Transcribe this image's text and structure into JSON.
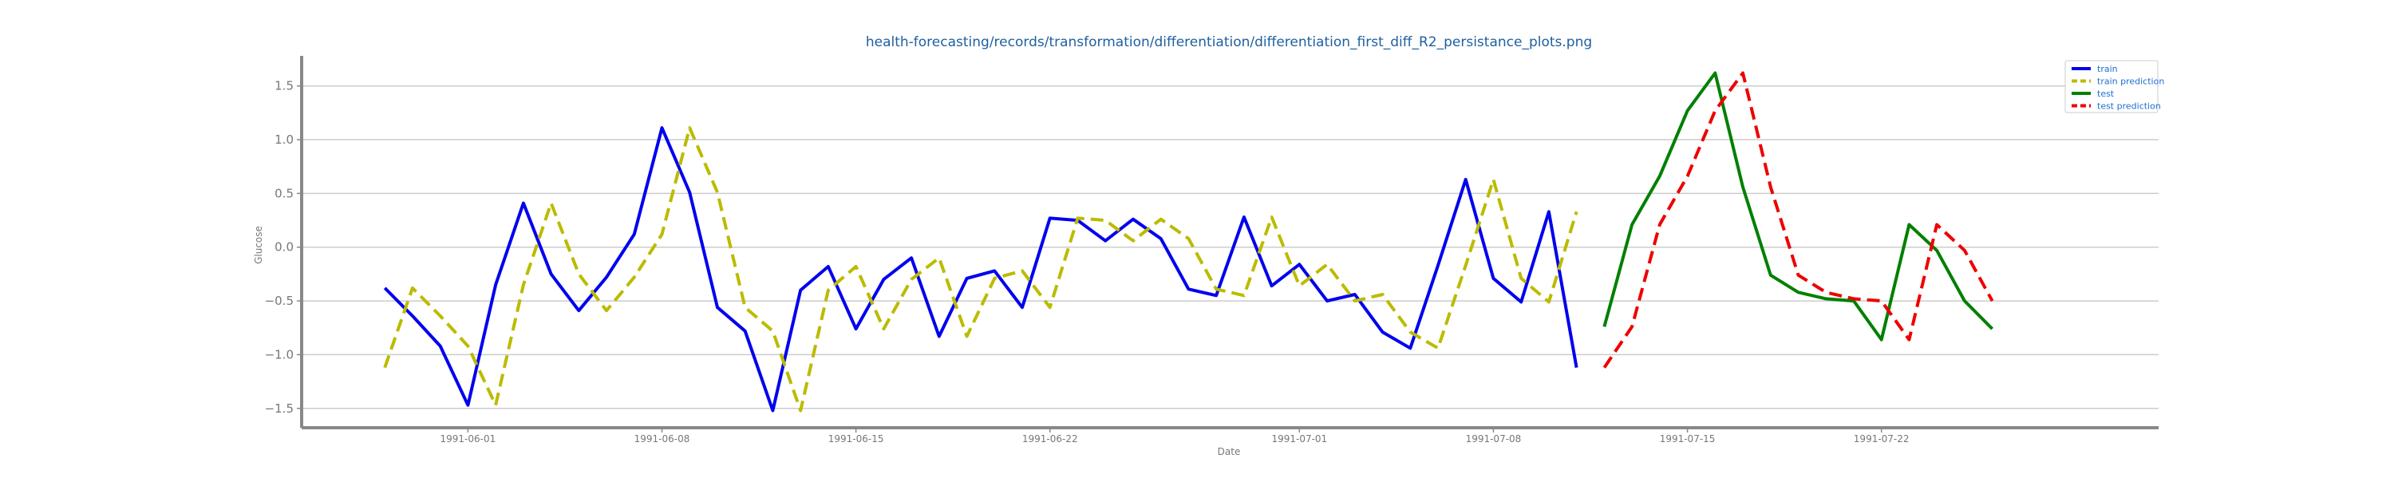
{
  "chart_data": {
    "type": "line",
    "title": "health-forecasting/records/transformation/differentiation/differentiation_first_diff_R2_persistance_plots.png",
    "xlabel": "Date",
    "ylabel": "Glucose",
    "xlim": [
      "1991-05-26",
      "1991-08-01"
    ],
    "ylim": [
      -1.68,
      1.78
    ],
    "x_ticks": [
      "1991-06-01",
      "1991-06-08",
      "1991-06-15",
      "1991-06-22",
      "1991-07-01",
      "1991-07-08",
      "1991-07-15",
      "1991-07-22"
    ],
    "y_ticks": [
      -1.5,
      -1.0,
      -0.5,
      0.0,
      0.5,
      1.0,
      1.5
    ],
    "y_tick_labels": [
      "−1.5",
      "−1.0",
      "−0.5",
      "0.0",
      "0.5",
      "1.0",
      "1.5"
    ],
    "grid": "horizontal",
    "legend_position": "top-right",
    "colors": {
      "train": "#0000ee",
      "train_prediction": "#bbbb00",
      "test": "#008000",
      "test_prediction": "#ee0000",
      "text": "#777777",
      "title": "#1f5f9f",
      "legend_text": "#1f6fd0",
      "grid": "#cccccc",
      "axis": "#888888"
    },
    "series": [
      {
        "name": "train",
        "style": "solid",
        "color": "#0000ee",
        "x": [
          "1991-05-29",
          "1991-05-30",
          "1991-05-31",
          "1991-06-01",
          "1991-06-02",
          "1991-06-03",
          "1991-06-04",
          "1991-06-05",
          "1991-06-06",
          "1991-06-07",
          "1991-06-08",
          "1991-06-09",
          "1991-06-10",
          "1991-06-11",
          "1991-06-12",
          "1991-06-13",
          "1991-06-14",
          "1991-06-15",
          "1991-06-16",
          "1991-06-17",
          "1991-06-18",
          "1991-06-19",
          "1991-06-20",
          "1991-06-21",
          "1991-06-22",
          "1991-06-23",
          "1991-06-24",
          "1991-06-25",
          "1991-06-26",
          "1991-06-27",
          "1991-06-28",
          "1991-06-29",
          "1991-06-30",
          "1991-07-01",
          "1991-07-02",
          "1991-07-03",
          "1991-07-04",
          "1991-07-05",
          "1991-07-06",
          "1991-07-07",
          "1991-07-08",
          "1991-07-09",
          "1991-07-10",
          "1991-07-11"
        ],
        "values": [
          -0.38,
          -0.64,
          -0.92,
          -1.47,
          -0.35,
          0.41,
          -0.25,
          -0.59,
          -0.28,
          0.12,
          1.11,
          0.51,
          -0.56,
          -0.78,
          -1.52,
          -0.4,
          -0.18,
          -0.76,
          -0.3,
          -0.1,
          -0.83,
          -0.29,
          -0.22,
          -0.56,
          0.27,
          0.25,
          0.06,
          0.26,
          0.08,
          -0.39,
          -0.45,
          0.28,
          -0.36,
          -0.16,
          -0.5,
          -0.44,
          -0.79,
          -0.94,
          -0.17,
          0.63,
          -0.29,
          -0.51,
          0.33,
          -1.12
        ]
      },
      {
        "name": "train prediction",
        "style": "dashed",
        "color": "#bbbb00",
        "x": [
          "1991-05-29",
          "1991-05-30",
          "1991-05-31",
          "1991-06-01",
          "1991-06-02",
          "1991-06-03",
          "1991-06-04",
          "1991-06-05",
          "1991-06-06",
          "1991-06-07",
          "1991-06-08",
          "1991-06-09",
          "1991-06-10",
          "1991-06-11",
          "1991-06-12",
          "1991-06-13",
          "1991-06-14",
          "1991-06-15",
          "1991-06-16",
          "1991-06-17",
          "1991-06-18",
          "1991-06-19",
          "1991-06-20",
          "1991-06-21",
          "1991-06-22",
          "1991-06-23",
          "1991-06-24",
          "1991-06-25",
          "1991-06-26",
          "1991-06-27",
          "1991-06-28",
          "1991-06-29",
          "1991-06-30",
          "1991-07-01",
          "1991-07-02",
          "1991-07-03",
          "1991-07-04",
          "1991-07-05",
          "1991-07-06",
          "1991-07-07",
          "1991-07-08",
          "1991-07-09",
          "1991-07-10",
          "1991-07-11"
        ],
        "values": [
          -1.12,
          -0.38,
          -0.64,
          -0.92,
          -1.47,
          -0.35,
          0.41,
          -0.25,
          -0.59,
          -0.28,
          0.12,
          1.11,
          0.51,
          -0.56,
          -0.78,
          -1.52,
          -0.4,
          -0.18,
          -0.76,
          -0.3,
          -0.1,
          -0.83,
          -0.29,
          -0.22,
          -0.56,
          0.27,
          0.25,
          0.06,
          0.26,
          0.08,
          -0.39,
          -0.45,
          0.28,
          -0.36,
          -0.16,
          -0.5,
          -0.44,
          -0.79,
          -0.94,
          -0.17,
          0.63,
          -0.29,
          -0.51,
          0.33
        ]
      },
      {
        "name": "test",
        "style": "solid",
        "color": "#008000",
        "x": [
          "1991-07-12",
          "1991-07-13",
          "1991-07-14",
          "1991-07-15",
          "1991-07-16",
          "1991-07-17",
          "1991-07-18",
          "1991-07-19",
          "1991-07-20",
          "1991-07-21",
          "1991-07-22",
          "1991-07-23",
          "1991-07-24",
          "1991-07-25",
          "1991-07-26"
        ],
        "values": [
          -0.74,
          0.21,
          0.66,
          1.27,
          1.62,
          0.56,
          -0.26,
          -0.42,
          -0.48,
          -0.5,
          -0.86,
          0.21,
          -0.03,
          -0.5,
          -0.76
        ]
      },
      {
        "name": "test prediction",
        "style": "dashed",
        "color": "#ee0000",
        "x": [
          "1991-07-12",
          "1991-07-13",
          "1991-07-14",
          "1991-07-15",
          "1991-07-16",
          "1991-07-17",
          "1991-07-18",
          "1991-07-19",
          "1991-07-20",
          "1991-07-21",
          "1991-07-22",
          "1991-07-23",
          "1991-07-24",
          "1991-07-25",
          "1991-07-26"
        ],
        "values": [
          -1.12,
          -0.74,
          0.21,
          0.66,
          1.27,
          1.62,
          0.56,
          -0.26,
          -0.42,
          -0.48,
          -0.5,
          -0.86,
          0.21,
          -0.03,
          -0.5
        ]
      }
    ]
  }
}
